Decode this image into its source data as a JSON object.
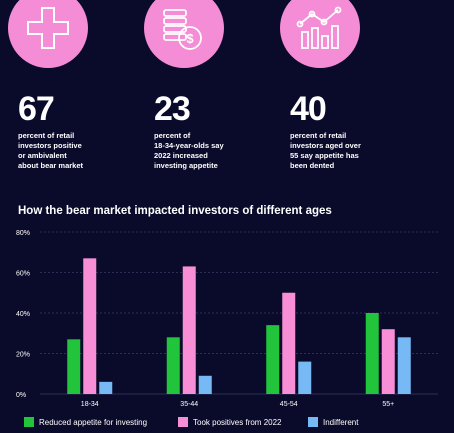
{
  "stats": [
    {
      "icon": "plus-icon",
      "number": "67",
      "text": "percent of retail\ninvestors positive\nor ambivalent\nabout bear market"
    },
    {
      "icon": "coins-dollar-icon",
      "number": "23",
      "text": "percent of\n18-34-year-olds say\n2022 increased\ninvesting appetite"
    },
    {
      "icon": "chart-trend-icon",
      "number": "40",
      "text": "percent of retail\ninvestors aged over\n55 say appetite has\nbeen dented"
    }
  ],
  "colors": {
    "background": "#0a0a2a",
    "accent_pink": "#f48cd6",
    "green": "#22c43c",
    "pink": "#f78ed6",
    "blue": "#77b9f5"
  },
  "chart_data": {
    "type": "bar",
    "title": "How the bear market impacted investors of different ages",
    "categories": [
      "18-34",
      "35-44",
      "45-54",
      "55+"
    ],
    "series": [
      {
        "name": "Reduced appetite for investing",
        "color": "#22c43c",
        "values": [
          27,
          28,
          34,
          40
        ]
      },
      {
        "name": "Took positives from 2022",
        "color": "#f78ed6",
        "values": [
          67,
          63,
          50,
          32
        ]
      },
      {
        "name": "Indifferent",
        "color": "#77b9f5",
        "values": [
          6,
          9,
          16,
          28
        ]
      }
    ],
    "ylim": [
      0,
      80
    ],
    "yticks": [
      "0%",
      "20%",
      "40%",
      "60%",
      "80%"
    ],
    "grid": true,
    "legend": "bottom"
  }
}
